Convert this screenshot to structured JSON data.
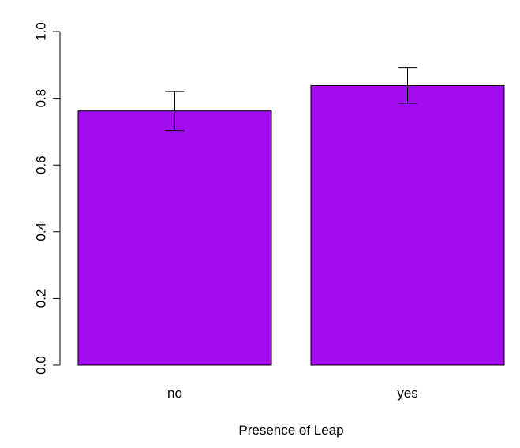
{
  "chart_data": {
    "type": "bar",
    "categories": [
      "no",
      "yes"
    ],
    "values": [
      0.762,
      0.838
    ],
    "error_bars": [
      {
        "lower": 0.703,
        "upper": 0.82
      },
      {
        "lower": 0.785,
        "upper": 0.892
      }
    ],
    "title": "",
    "xlabel": "Presence of Leap",
    "ylabel": "",
    "ylim": [
      0,
      1
    ],
    "yticks": [
      "0.0",
      "0.2",
      "0.4",
      "0.6",
      "0.8",
      "1.0"
    ],
    "grid": false,
    "legend": "none",
    "bar_color": "#A20CEF"
  }
}
